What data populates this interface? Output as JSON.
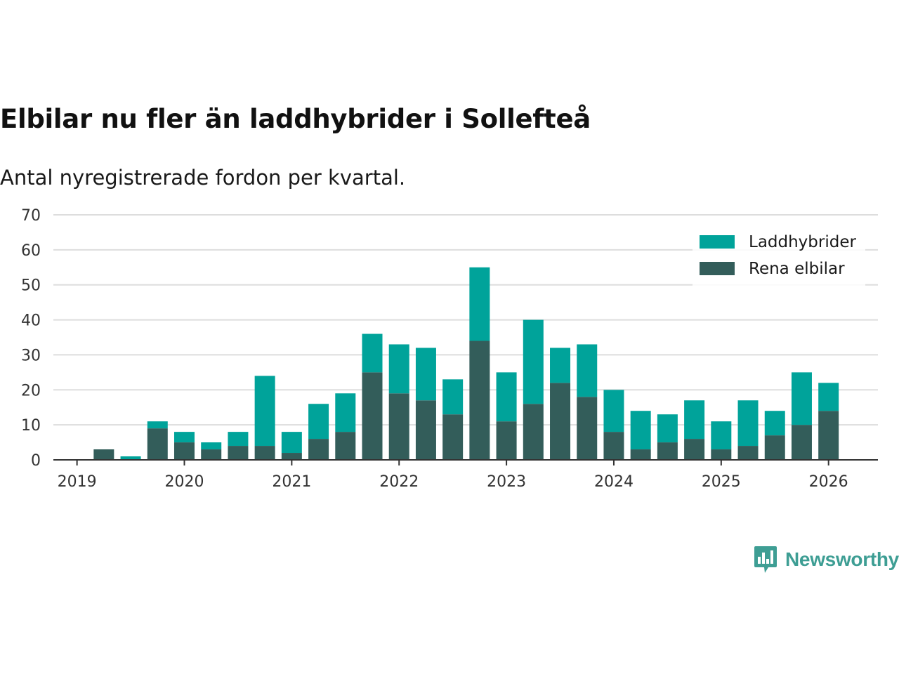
{
  "title": "Elbilar nu fler än laddhybrider i Sollefteå",
  "subtitle": "Antal nyregistrerade fordon per kvartal.",
  "logo": {
    "text": "Newsworthy",
    "icon": "newsworthy-logo-icon"
  },
  "colors": {
    "laddhybrider": "#00a39a",
    "rena_elbilar": "#335d5a",
    "grid": "#dddddd",
    "axis": "#333333"
  },
  "chart_data": {
    "type": "bar",
    "stacked": true,
    "title": "Elbilar nu fler än laddhybrider i Sollefteå",
    "subtitle": "Antal nyregistrerade fordon per kvartal.",
    "xlabel": "",
    "ylabel": "",
    "ylim": [
      0,
      70
    ],
    "yticks": [
      0,
      10,
      20,
      30,
      40,
      50,
      60,
      70
    ],
    "xticks": [
      {
        "label": "2019",
        "x": 2019.0
      },
      {
        "label": "2020",
        "x": 2020.0
      },
      {
        "label": "2021",
        "x": 2021.0
      },
      {
        "label": "2022",
        "x": 2022.0
      },
      {
        "label": "2023",
        "x": 2023.0
      },
      {
        "label": "2024",
        "x": 2024.0
      },
      {
        "label": "2025",
        "x": 2025.0
      },
      {
        "label": "2026",
        "x": 2026.0
      }
    ],
    "xlim": [
      2018.78,
      2026.46
    ],
    "categories": [
      "2019 Q1",
      "2019 Q2",
      "2019 Q3",
      "2019 Q4",
      "2020 Q1",
      "2020 Q2",
      "2020 Q3",
      "2020 Q4",
      "2021 Q1",
      "2021 Q2",
      "2021 Q3",
      "2021 Q4",
      "2022 Q1",
      "2022 Q2",
      "2022 Q3",
      "2022 Q4",
      "2023 Q1",
      "2023 Q2",
      "2023 Q3",
      "2023 Q4",
      "2024 Q1",
      "2024 Q2",
      "2024 Q3",
      "2024 Q4",
      "2025 Q1",
      "2025 Q2",
      "2025 Q3",
      "2025 Q4",
      "2026 Q1"
    ],
    "x": [
      2019.0,
      2019.25,
      2019.5,
      2019.75,
      2020.0,
      2020.25,
      2020.5,
      2020.75,
      2021.0,
      2021.25,
      2021.5,
      2021.75,
      2022.0,
      2022.25,
      2022.5,
      2022.75,
      2023.0,
      2023.25,
      2023.5,
      2023.75,
      2024.0,
      2024.25,
      2024.5,
      2024.75,
      2025.0,
      2025.25,
      2025.5,
      2025.75,
      2026.0
    ],
    "series": [
      {
        "name": "Rena elbilar",
        "key": "rena_elbilar",
        "values": [
          0,
          3,
          0,
          9,
          5,
          3,
          4,
          4,
          2,
          6,
          8,
          25,
          19,
          17,
          13,
          34,
          11,
          16,
          22,
          18,
          8,
          3,
          5,
          6,
          3,
          4,
          7,
          10,
          14
        ]
      },
      {
        "name": "Laddhybrider",
        "key": "laddhybrider",
        "values": [
          0,
          0,
          1,
          2,
          3,
          2,
          4,
          20,
          6,
          10,
          11,
          11,
          14,
          15,
          10,
          21,
          14,
          24,
          10,
          15,
          12,
          11,
          8,
          11,
          8,
          13,
          7,
          15,
          8
        ]
      }
    ],
    "legend": {
      "position": "top-right",
      "entries": [
        "Laddhybrider",
        "Rena elbilar"
      ]
    }
  }
}
